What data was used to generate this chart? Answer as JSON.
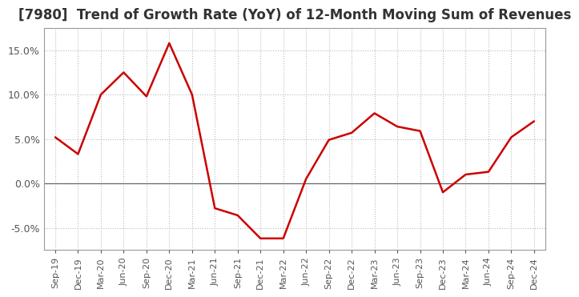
{
  "title": "[7980]  Trend of Growth Rate (YoY) of 12-Month Moving Sum of Revenues",
  "title_fontsize": 12,
  "line_color": "#CC0000",
  "line_width": 1.8,
  "background_color": "#FFFFFF",
  "plot_bg_color": "#FFFFFF",
  "grid_color": "#BBBBBB",
  "ylim": [
    -0.075,
    0.175
  ],
  "yticks": [
    -0.05,
    0.0,
    0.05,
    0.1,
    0.15
  ],
  "x_labels": [
    "Sep-19",
    "Dec-19",
    "Mar-20",
    "Jun-20",
    "Sep-20",
    "Dec-20",
    "Mar-21",
    "Jun-21",
    "Sep-21",
    "Dec-21",
    "Mar-22",
    "Jun-22",
    "Sep-22",
    "Dec-22",
    "Mar-23",
    "Jun-23",
    "Sep-23",
    "Dec-23",
    "Mar-24",
    "Jun-24",
    "Sep-24",
    "Dec-24"
  ],
  "y_values": [
    0.052,
    0.033,
    0.1,
    0.125,
    0.098,
    0.158,
    0.1,
    -0.028,
    -0.036,
    -0.062,
    -0.062,
    0.005,
    0.049,
    0.057,
    0.079,
    0.064,
    0.059,
    -0.01,
    0.01,
    0.013,
    0.052,
    0.07
  ],
  "spine_color": "#999999",
  "tick_color": "#555555",
  "label_fontsize": 8,
  "ytick_fontsize": 9
}
